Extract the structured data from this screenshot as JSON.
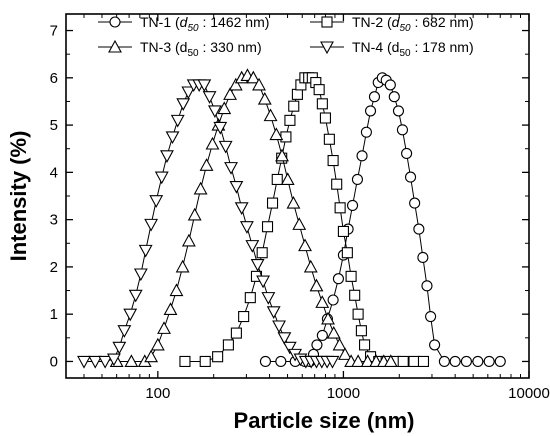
{
  "chart_data": {
    "type": "scatter",
    "xlabel": "Particle size (nm)",
    "ylabel": "Intensity (%)",
    "x_scale": "log",
    "xlim": [
      32,
      10000
    ],
    "ylim": [
      -0.35,
      7.35
    ],
    "x_ticks": [
      100,
      1000,
      10000
    ],
    "x_tick_labels": [
      "100",
      "1000",
      "10000"
    ],
    "y_ticks": [
      0,
      1,
      2,
      3,
      4,
      5,
      6,
      7
    ],
    "y_tick_labels": [
      "0",
      "1",
      "2",
      "3",
      "4",
      "5",
      "6",
      "7"
    ],
    "legend_placement": "top",
    "series": [
      {
        "name": "TN-1",
        "d50_label": "d",
        "d50_sub": "50",
        "d50_value": " : 1462 nm)",
        "marker": "circle",
        "x": [
          380,
          460,
          550,
          620,
          660,
          690,
          720,
          770,
          820,
          880,
          940,
          1000,
          1060,
          1120,
          1190,
          1260,
          1330,
          1400,
          1470,
          1540,
          1620,
          1700,
          1790,
          1880,
          1980,
          2080,
          2190,
          2300,
          2420,
          2550,
          2680,
          2820,
          2950,
          3100,
          3500,
          4000,
          4600,
          5300,
          6100,
          7000
        ],
        "y": [
          0,
          0,
          0,
          0,
          0,
          0.15,
          0.35,
          0.55,
          0.9,
          1.3,
          1.75,
          2.25,
          2.8,
          3.3,
          3.85,
          4.35,
          4.85,
          5.3,
          5.6,
          5.9,
          6.0,
          5.95,
          5.85,
          5.6,
          5.3,
          4.9,
          4.4,
          3.9,
          3.35,
          2.8,
          2.2,
          1.6,
          0.95,
          0.35,
          0,
          0,
          0,
          0,
          0,
          0
        ]
      },
      {
        "name": "TN-2",
        "d50_label": "d",
        "d50_sub": "50",
        "d50_value": " : 682 nm)",
        "marker": "square",
        "x": [
          140,
          180,
          210,
          240,
          265,
          290,
          315,
          340,
          365,
          390,
          415,
          440,
          465,
          490,
          515,
          540,
          565,
          590,
          620,
          650,
          680,
          710,
          740,
          770,
          800,
          840,
          880,
          920,
          960,
          1000,
          1050,
          1100,
          1150,
          1200,
          1250,
          1300,
          1400,
          1550,
          1700,
          1900,
          2100,
          2400,
          2700
        ],
        "y": [
          0,
          0,
          0.1,
          0.35,
          0.6,
          0.95,
          1.35,
          1.8,
          2.3,
          2.85,
          3.35,
          3.85,
          4.3,
          4.75,
          5.1,
          5.4,
          5.65,
          5.85,
          6.0,
          6.0,
          6.0,
          5.9,
          5.75,
          5.45,
          5.15,
          4.7,
          4.25,
          3.75,
          3.25,
          2.75,
          2.3,
          1.8,
          1.4,
          1.0,
          0.65,
          0.35,
          0.1,
          0,
          0,
          0,
          0,
          0,
          0
        ]
      },
      {
        "name": "TN-3",
        "d50_label": "d",
        "d50_sub": "50",
        "d50_value": " : 330 nm)",
        "marker": "triangle-up",
        "x": [
          60,
          72,
          85,
          92,
          100,
          108,
          117,
          126,
          136,
          147,
          158,
          170,
          183,
          197,
          212,
          228,
          245,
          263,
          283,
          304,
          327,
          351,
          377,
          405,
          435,
          467,
          501,
          538,
          578,
          621,
          667,
          716,
          769,
          826,
          887,
          953,
          1020,
          1100,
          1200,
          1350,
          1500,
          1650,
          1800
        ],
        "y": [
          0,
          0,
          0,
          0.1,
          0.35,
          0.7,
          1.1,
          1.5,
          2.0,
          2.55,
          3.1,
          3.65,
          4.15,
          4.6,
          5.0,
          5.35,
          5.65,
          5.85,
          6.0,
          6.05,
          6.0,
          5.85,
          5.55,
          5.2,
          4.8,
          4.35,
          3.85,
          3.35,
          2.9,
          2.45,
          2.0,
          1.6,
          1.25,
          0.9,
          0.6,
          0.35,
          0.15,
          0,
          0,
          0,
          0,
          0,
          0
        ]
      },
      {
        "name": "TN-4",
        "d50_label": "d",
        "d50_sub": "50",
        "d50_value": " : 178 nm)",
        "marker": "triangle-down",
        "x": [
          40,
          46,
          52,
          58,
          62,
          66,
          71,
          76,
          81,
          86,
          92,
          98,
          105,
          112,
          120,
          128,
          137,
          146,
          156,
          167,
          178,
          190,
          203,
          217,
          232,
          248,
          265,
          283,
          302,
          323,
          345,
          369,
          394,
          421,
          450,
          481,
          514,
          549,
          587,
          627,
          670,
          716,
          765,
          817,
          873
        ],
        "y": [
          0,
          0,
          0,
          0.05,
          0.3,
          0.65,
          1.0,
          1.4,
          1.85,
          2.35,
          2.9,
          3.4,
          3.9,
          4.35,
          4.75,
          5.1,
          5.45,
          5.7,
          5.85,
          5.85,
          5.85,
          5.6,
          5.3,
          4.95,
          4.55,
          4.1,
          3.7,
          3.25,
          2.85,
          2.45,
          2.05,
          1.7,
          1.35,
          1.05,
          0.75,
          0.5,
          0.3,
          0.15,
          0.05,
          0,
          0,
          0,
          0,
          0,
          0
        ]
      }
    ]
  }
}
